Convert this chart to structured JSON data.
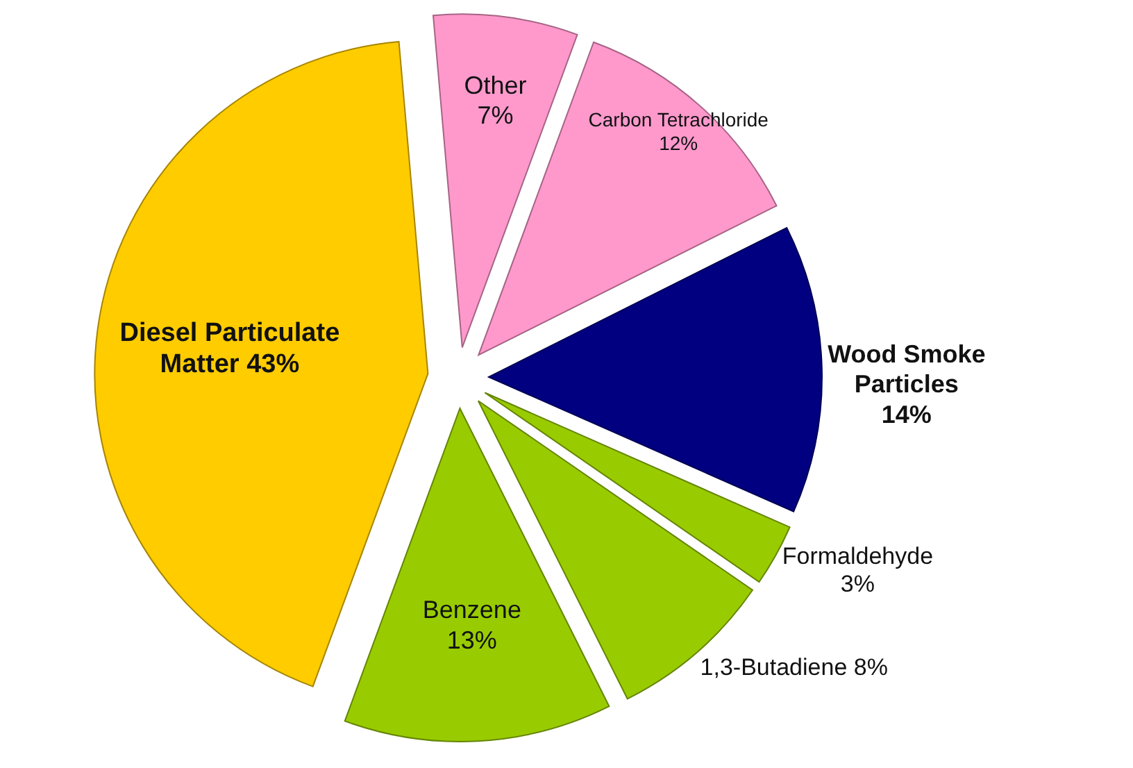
{
  "chart_data": {
    "type": "pie",
    "categories": [
      "Other",
      "Carbon Tetrachloride",
      "Wood Smoke Particles",
      "Formaldehyde",
      "1,3-Butadiene",
      "Benzene",
      "Diesel Particulate Matter"
    ],
    "values": [
      7,
      12,
      14,
      3,
      8,
      13,
      43
    ],
    "colors": [
      "#ff99cc",
      "#ff99cc",
      "#000080",
      "#99cc00",
      "#99cc00",
      "#99cc00",
      "#ffcc00"
    ],
    "value_labels": [
      "7%",
      "12%",
      "14%",
      "3%",
      "8%",
      "13%",
      "43%"
    ]
  }
}
